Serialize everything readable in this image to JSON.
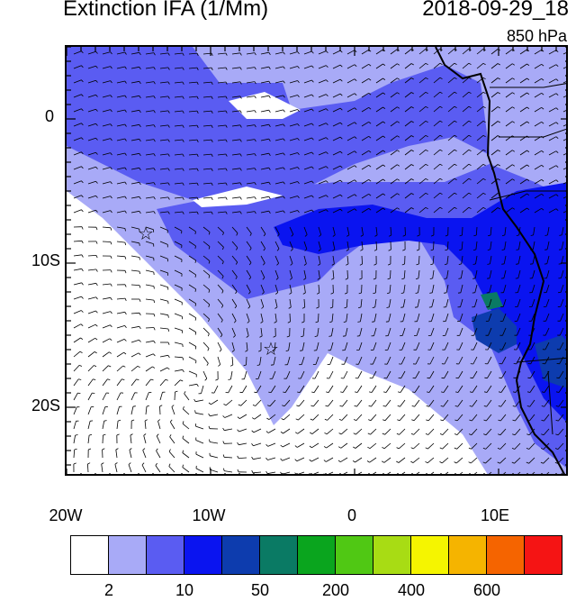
{
  "title": "Extinction IFA (1/Mm)",
  "datetime": "2018-09-29_18",
  "level": "850 hPa",
  "axes": {
    "lon_labels": [
      "20W",
      "10W",
      "0",
      "10E"
    ],
    "lat_labels": [
      "0",
      "10S",
      "20S"
    ]
  },
  "colorbar": {
    "colors": [
      "#ffffff",
      "#a8aaf7",
      "#5a5cf2",
      "#0a14f0",
      "#0d3cae",
      "#0a7a64",
      "#0aa51e",
      "#50c814",
      "#a8dc14",
      "#f5f500",
      "#f5b400",
      "#f56400",
      "#f51414"
    ],
    "labels": [
      "2",
      "10",
      "50",
      "200",
      "400",
      "600"
    ]
  },
  "markers": [
    {
      "name": "star-marker",
      "lon": -14.5,
      "lat": -8
    },
    {
      "name": "star-marker",
      "lon": -5.8,
      "lat": -16
    }
  ]
}
